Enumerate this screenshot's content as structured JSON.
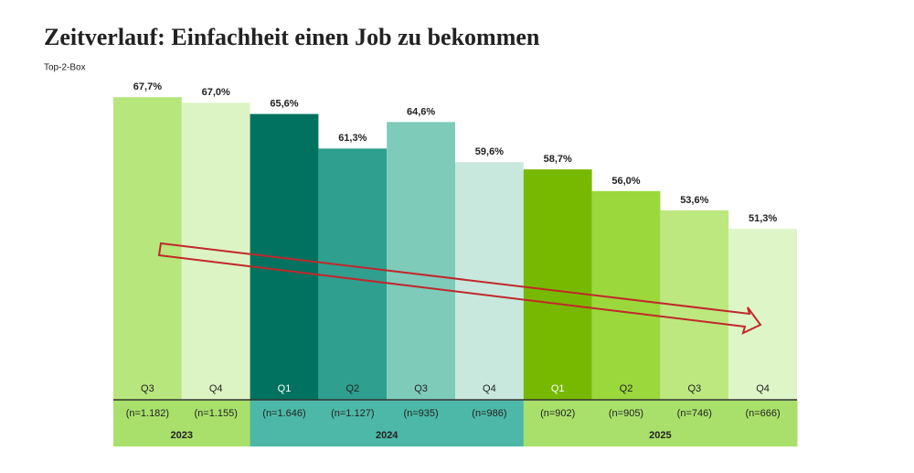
{
  "chart_data": {
    "type": "bar",
    "title": "Zeitverlauf: Einfachheit einen Job zu bekommen",
    "subtitle": "Top-2-Box",
    "categories": [
      "Q3",
      "Q4",
      "Q1",
      "Q2",
      "Q3",
      "Q4",
      "Q1",
      "Q2",
      "Q3",
      "Q4"
    ],
    "values": [
      67.7,
      67.0,
      65.6,
      61.3,
      64.6,
      59.6,
      58.7,
      56.0,
      53.6,
      51.3
    ],
    "value_labels": [
      "67,7%",
      "67,0%",
      "65,6%",
      "61,3%",
      "64,6%",
      "59,6%",
      "58,7%",
      "56,0%",
      "53,6%",
      "51,3%"
    ],
    "sample_sizes": [
      "(n=1.182)",
      "(n=1.155)",
      "(n=1.646)",
      "(n=1.127)",
      "(n=935)",
      "(n=986)",
      "(n=902)",
      "(n=905)",
      "(n=746)",
      "(n=666)"
    ],
    "years": [
      "2023",
      "2023",
      "2024",
      "2024",
      "2024",
      "2024",
      "2025",
      "2025",
      "2025",
      "2025"
    ],
    "colors": [
      "#b7e67c",
      "#dcf4c4",
      "#00725f",
      "#2f9f8f",
      "#7ecbba",
      "#c8e8dd",
      "#77b900",
      "#9bd83c",
      "#bde880",
      "#def5c7"
    ],
    "label_colors": [
      "#222222",
      "#222222",
      "#ffffff",
      "#222222",
      "#222222",
      "#222222",
      "#ffffff",
      "#222222",
      "#222222",
      "#222222"
    ],
    "band_colors": [
      "#a9e06b",
      "#a9e06b",
      "#4db8a7",
      "#4db8a7",
      "#4db8a7",
      "#4db8a7",
      "#a9e06b",
      "#a9e06b",
      "#a9e06b",
      "#a9e06b"
    ],
    "ylim": [
      30,
      70
    ]
  }
}
